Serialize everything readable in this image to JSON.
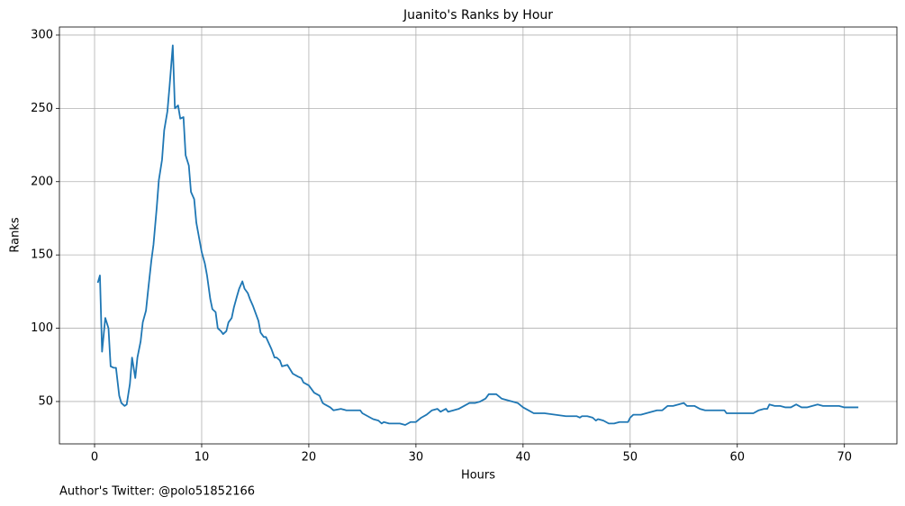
{
  "chart_data": {
    "type": "line",
    "title": "Juanito's Ranks by Hour",
    "x_label": "Hours",
    "y_label": "Ranks",
    "footer": "Author's Twitter: @polo51852166",
    "xlim": [
      -3.28,
      74.9
    ],
    "ylim": [
      21.1,
      305.5
    ],
    "xticks": [
      0,
      10,
      20,
      30,
      40,
      50,
      60,
      70
    ],
    "yticks": [
      50,
      100,
      150,
      200,
      250,
      300
    ],
    "grid": true,
    "x": [
      0.3,
      0.5,
      0.7,
      1.0,
      1.3,
      1.5,
      1.8,
      2.0,
      2.3,
      2.5,
      2.8,
      3.0,
      3.3,
      3.5,
      3.8,
      4.0,
      4.3,
      4.5,
      4.8,
      5.0,
      5.3,
      5.5,
      5.8,
      6.0,
      6.3,
      6.5,
      6.8,
      7.0,
      7.3,
      7.5,
      7.8,
      8.0,
      8.3,
      8.5,
      8.8,
      9.0,
      9.3,
      9.5,
      9.8,
      10.0,
      10.3,
      10.5,
      10.8,
      11.0,
      11.3,
      11.5,
      11.8,
      12.0,
      12.3,
      12.5,
      12.8,
      13.0,
      13.3,
      13.5,
      13.8,
      14.0,
      14.3,
      14.5,
      14.8,
      15.0,
      15.3,
      15.5,
      15.8,
      16.0,
      16.5,
      16.8,
      17.0,
      17.3,
      17.5,
      18.0,
      18.5,
      19.0,
      19.3,
      19.5,
      20.0,
      20.5,
      21.0,
      21.3,
      21.5,
      22.0,
      22.3,
      23.0,
      23.5,
      24.0,
      24.8,
      25.0,
      25.5,
      26.0,
      26.5,
      26.8,
      27.0,
      27.5,
      28.0,
      28.5,
      29.0,
      29.5,
      30.0,
      30.5,
      31.0,
      31.5,
      32.0,
      32.3,
      32.8,
      33.0,
      33.5,
      34.0,
      34.5,
      35.0,
      35.5,
      36.0,
      36.5,
      36.8,
      37.5,
      38.0,
      38.5,
      39.0,
      39.5,
      40.0,
      40.5,
      41.0,
      42.0,
      43.0,
      44.0,
      45.0,
      45.3,
      45.5,
      46.0,
      46.5,
      46.8,
      47.0,
      47.5,
      48.0,
      48.5,
      49.0,
      49.8,
      50.0,
      50.3,
      51.0,
      51.5,
      52.0,
      52.5,
      53.0,
      53.5,
      54.0,
      54.5,
      55.0,
      55.3,
      56.0,
      56.5,
      57.0,
      58.0,
      58.8,
      59.0,
      60.0,
      61.0,
      61.5,
      62.0,
      62.5,
      62.8,
      63.0,
      63.5,
      64.0,
      64.5,
      65.0,
      65.5,
      66.0,
      66.5,
      67.0,
      67.5,
      68.0,
      69.0,
      69.5,
      70.0,
      71.3
    ],
    "series": [
      {
        "color": "#1f77b4",
        "values": [
          131,
          136,
          84,
          107,
          100,
          74,
          73,
          73,
          54,
          49,
          47,
          48,
          62,
          80,
          66,
          80,
          91,
          104,
          112,
          126,
          146,
          157,
          182,
          201,
          215,
          235,
          248,
          265,
          293,
          250,
          252,
          243,
          244,
          218,
          211,
          193,
          188,
          172,
          160,
          152,
          144,
          136,
          120,
          113,
          111,
          100,
          98,
          96,
          98,
          104,
          107,
          114,
          122,
          127,
          132,
          127,
          124,
          120,
          115,
          111,
          105,
          97,
          94,
          94,
          86,
          80,
          80,
          78,
          74,
          75,
          69,
          67,
          66,
          63,
          61,
          56,
          54,
          49,
          48,
          46,
          44,
          45,
          44,
          44,
          44,
          42,
          40,
          38,
          37,
          35,
          36,
          35,
          35,
          35,
          34,
          36,
          36,
          39,
          41,
          44,
          45,
          43,
          45,
          43,
          44,
          45,
          47,
          49,
          49,
          50,
          52,
          55,
          55,
          52,
          51,
          50,
          49,
          46,
          44,
          42,
          42,
          41,
          40,
          40,
          39,
          40,
          40,
          39,
          37,
          38,
          37,
          35,
          35,
          36,
          36,
          39,
          41,
          41,
          42,
          43,
          44,
          44,
          47,
          47,
          48,
          49,
          47,
          47,
          45,
          44,
          44,
          44,
          42,
          42,
          42,
          42,
          44,
          45,
          45,
          48,
          47,
          47,
          46,
          46,
          48,
          46,
          46,
          47,
          48,
          47,
          47,
          47,
          46,
          46
        ]
      }
    ]
  }
}
